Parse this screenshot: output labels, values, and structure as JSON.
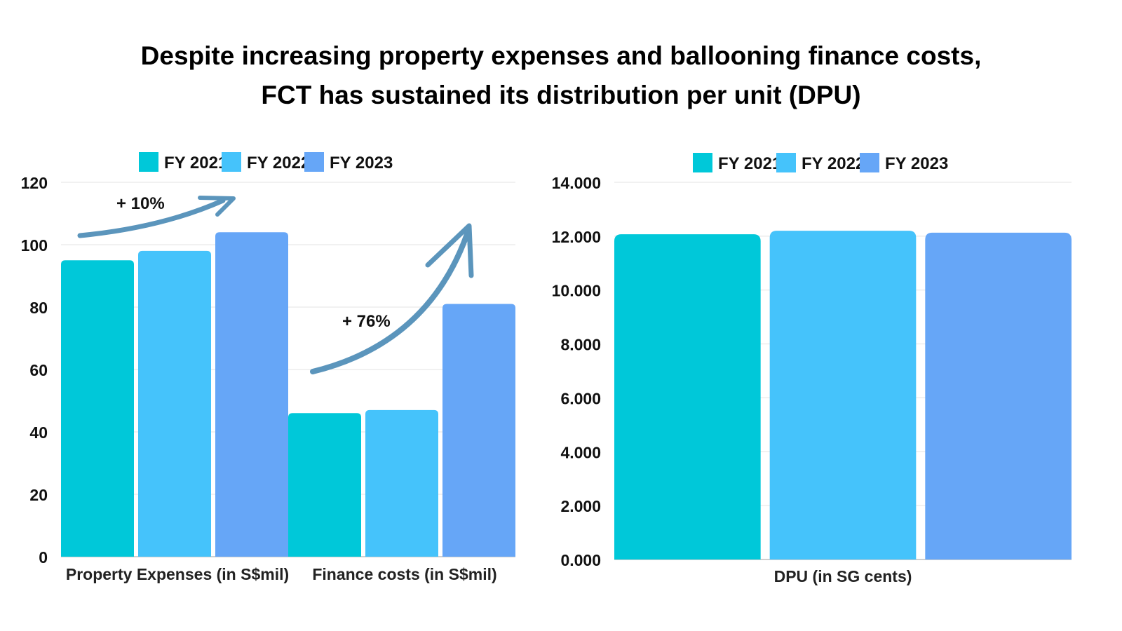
{
  "title_lines": [
    "Despite increasing property expenses and ballooning finance costs,",
    "FCT has sustained its distribution per unit (DPU)"
  ],
  "chart_data": [
    {
      "type": "bar",
      "categories": [
        "Property Expenses (in S$mil)",
        "Finance costs (in S$mil)"
      ],
      "series": [
        {
          "name": "FY 2021",
          "color": "#00C8D9",
          "values": [
            95,
            46
          ]
        },
        {
          "name": "FY 2022",
          "color": "#45C3FB",
          "values": [
            98,
            47
          ]
        },
        {
          "name": "FY 2023",
          "color": "#66A6F7",
          "values": [
            104,
            81
          ]
        }
      ],
      "ylim": [
        0,
        120
      ],
      "yticks": [
        "0",
        "20",
        "40",
        "60",
        "80",
        "100",
        "120"
      ],
      "grid": true,
      "legend": "top",
      "annotations": [
        "+ 10%",
        "+ 76%"
      ]
    },
    {
      "type": "bar",
      "categories": [
        "DPU (in SG cents)"
      ],
      "series": [
        {
          "name": "FY 2021",
          "color": "#00C8D9",
          "values": [
            12.07
          ]
        },
        {
          "name": "FY 2022",
          "color": "#45C3FB",
          "values": [
            12.2
          ]
        },
        {
          "name": "FY 2023",
          "color": "#66A6F7",
          "values": [
            12.13
          ]
        }
      ],
      "ylim": [
        0,
        14
      ],
      "yticks": [
        "0.000",
        "2.000",
        "4.000",
        "6.000",
        "8.000",
        "10.000",
        "12.000",
        "14.000"
      ],
      "grid": true,
      "legend": "top"
    }
  ]
}
